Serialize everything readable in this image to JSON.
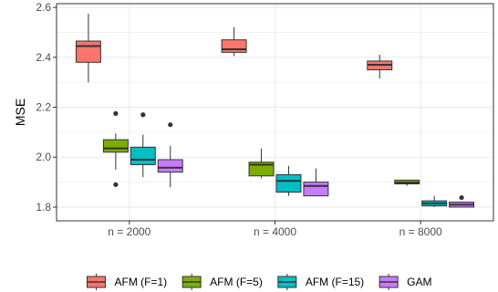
{
  "chart_data": {
    "type": "boxplot",
    "title": "",
    "xlabel": "",
    "ylabel": "MSE",
    "ylim": [
      1.745,
      2.615
    ],
    "y_ticks": [
      1.8,
      2.0,
      2.2,
      2.4,
      2.6
    ],
    "y_tick_labels": [
      "1.8",
      "2.0",
      "2.2",
      "2.4",
      "2.6"
    ],
    "categories": [
      "n = 2000",
      "n = 4000",
      "n = 8000"
    ],
    "grid": true,
    "legend_position": "bottom",
    "series": [
      {
        "name": "AFM (F=1)",
        "color": "#F8766D",
        "boxes": [
          {
            "whisker_low": 2.3,
            "q1": 2.38,
            "median": 2.445,
            "q3": 2.465,
            "whisker_high": 2.575,
            "outliers": []
          },
          {
            "whisker_low": 2.405,
            "q1": 2.42,
            "median": 2.432,
            "q3": 2.47,
            "whisker_high": 2.52,
            "outliers": []
          },
          {
            "whisker_low": 2.315,
            "q1": 2.35,
            "median": 2.37,
            "q3": 2.385,
            "whisker_high": 2.41,
            "outliers": []
          }
        ]
      },
      {
        "name": "AFM (F=5)",
        "color": "#7CAE00",
        "boxes": [
          {
            "whisker_low": 1.95,
            "q1": 2.02,
            "median": 2.035,
            "q3": 2.07,
            "whisker_high": 2.095,
            "outliers": [
              2.175,
              1.89
            ]
          },
          {
            "whisker_low": 1.915,
            "q1": 1.925,
            "median": 1.97,
            "q3": 1.98,
            "whisker_high": 2.035,
            "outliers": []
          },
          {
            "whisker_low": 1.885,
            "q1": 1.893,
            "median": 1.898,
            "q3": 1.908,
            "whisker_high": 1.91,
            "outliers": []
          }
        ]
      },
      {
        "name": "AFM (F=15)",
        "color": "#00BFC4",
        "boxes": [
          {
            "whisker_low": 1.92,
            "q1": 1.97,
            "median": 1.99,
            "q3": 2.04,
            "whisker_high": 2.09,
            "outliers": [
              2.17
            ]
          },
          {
            "whisker_low": 1.845,
            "q1": 1.86,
            "median": 1.905,
            "q3": 1.93,
            "whisker_high": 1.965,
            "outliers": []
          },
          {
            "whisker_low": 1.8,
            "q1": 1.805,
            "median": 1.815,
            "q3": 1.825,
            "whisker_high": 1.845,
            "outliers": []
          }
        ]
      },
      {
        "name": "GAM",
        "color": "#C77CFF",
        "boxes": [
          {
            "whisker_low": 1.88,
            "q1": 1.94,
            "median": 1.958,
            "q3": 1.99,
            "whisker_high": 2.045,
            "outliers": [
              2.13
            ]
          },
          {
            "whisker_low": 1.845,
            "q1": 1.845,
            "median": 1.885,
            "q3": 1.9,
            "whisker_high": 1.955,
            "outliers": []
          },
          {
            "whisker_low": 1.8,
            "q1": 1.8,
            "median": 1.81,
            "q3": 1.82,
            "whisker_high": 1.822,
            "outliers": [
              1.838
            ]
          }
        ]
      }
    ]
  }
}
